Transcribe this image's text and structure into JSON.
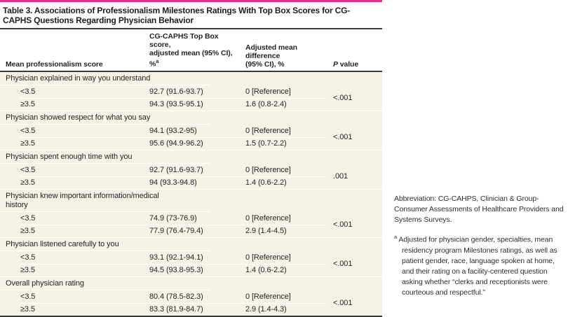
{
  "table": {
    "accent_color": "#ec2b86",
    "title": "Table 3. Associations of Professionalism Milestones Ratings With Top Box Scores for CG-CAPHS Questions Regarding Physician Behavior",
    "columns": {
      "col1": "Mean professionalism score",
      "col2_line1": "CG-CAPHS Top Box score,",
      "col2_line2": "adjusted mean (95% CI), %",
      "col2_sup": "a",
      "col3_line1": "Adjusted mean difference",
      "col3_line2": "(95% CI), %",
      "col4_italic": "P",
      "col4_rest": "value"
    },
    "sections": [
      {
        "label": "Physician explained in way you understand",
        "rows": [
          {
            "score": "<3.5",
            "top_box": "92.7 (91.6-93.7)",
            "diff": "0 [Reference]"
          },
          {
            "score": "≥3.5",
            "top_box": "94.3 (93.5-95.1)",
            "diff": "1.6 (0.8-2.4)"
          }
        ],
        "p_value": "<.001"
      },
      {
        "label": "Physician showed respect for what you say",
        "rows": [
          {
            "score": "<3.5",
            "top_box": "94.1 (93.2-95)",
            "diff": "0 [Reference]"
          },
          {
            "score": "≥3.5",
            "top_box": "95.6 (94.9-96.2)",
            "diff": "1.5 (0.7-2.2)"
          }
        ],
        "p_value": "<.001"
      },
      {
        "label": "Physician spent enough time with you",
        "rows": [
          {
            "score": "<3.5",
            "top_box": "92.7 (91.6-93.7)",
            "diff": "0 [Reference]"
          },
          {
            "score": "≥3.5",
            "top_box": "94 (93.3-94.8)",
            "diff": "1.4 (0.6-2.2)"
          }
        ],
        "p_value": ".001"
      },
      {
        "label": "Physician knew important information/medical history",
        "rows": [
          {
            "score": "<3.5",
            "top_box": "74.9 (73-76.9)",
            "diff": "0 [Reference]"
          },
          {
            "score": "≥3.5",
            "top_box": "77.9 (76.4-79.4)",
            "diff": "2.9 (1.4-4.5)"
          }
        ],
        "p_value": "<.001"
      },
      {
        "label": "Physician listened carefully to you",
        "rows": [
          {
            "score": "<3.5",
            "top_box": "93.1 (92.1-94.1)",
            "diff": "0 [Reference]"
          },
          {
            "score": "≥3.5",
            "top_box": "94.5 (93.8-95.3)",
            "diff": "1.4 (0.6-2.2)"
          }
        ],
        "p_value": "<.001"
      },
      {
        "label": "Overall physician rating",
        "rows": [
          {
            "score": "<3.5",
            "top_box": "80.4 (78.5-82.3)",
            "diff": "0 [Reference]"
          },
          {
            "score": "≥3.5",
            "top_box": "83.3 (81.9-84.7)",
            "diff": "2.9 (1.4-4.3)"
          }
        ],
        "p_value": "<.001"
      }
    ]
  },
  "notes": {
    "abbreviation": "Abbreviation: CG-CAHPS, Clinician & Group-Consumer Assessments of Healthcare Providers and Systems Surveys.",
    "footnote_marker": "a",
    "footnote_text": "Adjusted for physician gender, specialties, mean residency program Milestones ratings, as well as patient gender, race, language spoken at home, and their rating on a facility-centered question asking whether “clerks and receptionists were courteous and respectful.”"
  }
}
